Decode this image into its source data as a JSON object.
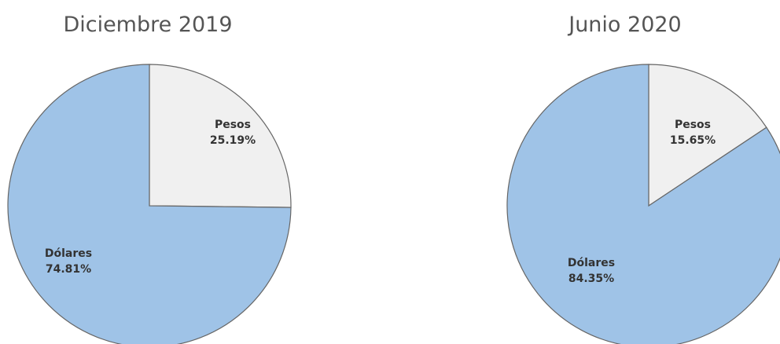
{
  "chart_data": [
    {
      "type": "pie",
      "title": "Diciembre 2019",
      "slices": [
        {
          "name": "Pesos",
          "value": 25.19,
          "label": "25.19%",
          "color": "#f0f0f0"
        },
        {
          "name": "Dólares",
          "value": 74.81,
          "label": "74.81%",
          "color": "#9fc3e7"
        }
      ]
    },
    {
      "type": "pie",
      "title": "Junio 2020",
      "slices": [
        {
          "name": "Pesos",
          "value": 15.65,
          "label": "15.65%",
          "color": "#f0f0f0"
        },
        {
          "name": "Dólares",
          "value": 84.35,
          "label": "84.35%",
          "color": "#9fc3e7"
        }
      ]
    }
  ]
}
